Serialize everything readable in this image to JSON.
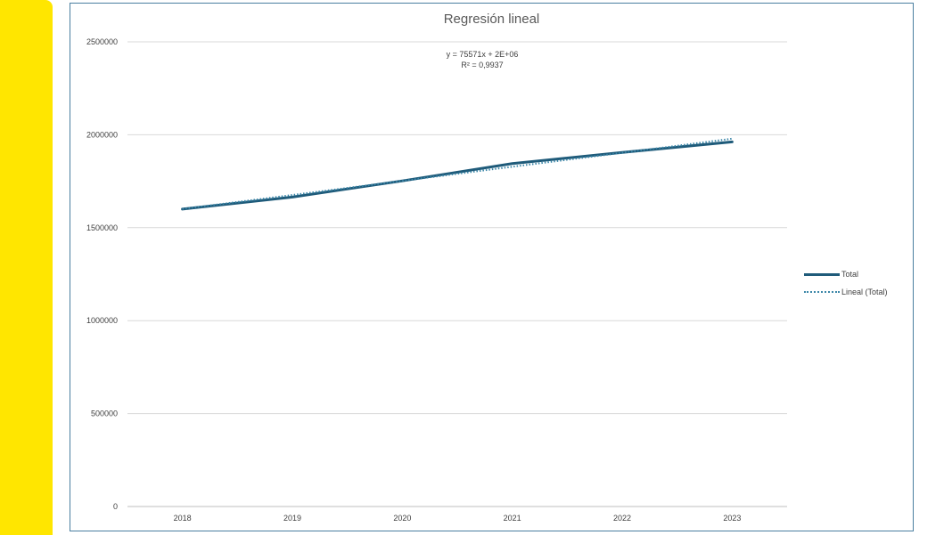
{
  "chart_data": {
    "type": "line",
    "title": "Regresión lineal",
    "categories": [
      "2018",
      "2019",
      "2020",
      "2021",
      "2022",
      "2023"
    ],
    "series": [
      {
        "name": "Total",
        "values": [
          1600000,
          1665000,
          1752000,
          1845000,
          1905000,
          1962000
        ],
        "color": "#1f5b7a",
        "style": "solid"
      },
      {
        "name": "Lineal (Total)",
        "values": [
          1601000,
          1676000,
          1752000,
          1828000,
          1903000,
          1979000
        ],
        "color": "#3a86a8",
        "style": "dotted"
      }
    ],
    "y_ticks": [
      "0",
      "500000",
      "1000000",
      "1500000",
      "2000000",
      "2500000"
    ],
    "ylim": [
      0,
      2500000
    ],
    "grid": true,
    "legend_position": "right",
    "annotation": {
      "equation": "y = 75571x + 2E+06",
      "r_squared": "R² = 0,9937"
    }
  }
}
